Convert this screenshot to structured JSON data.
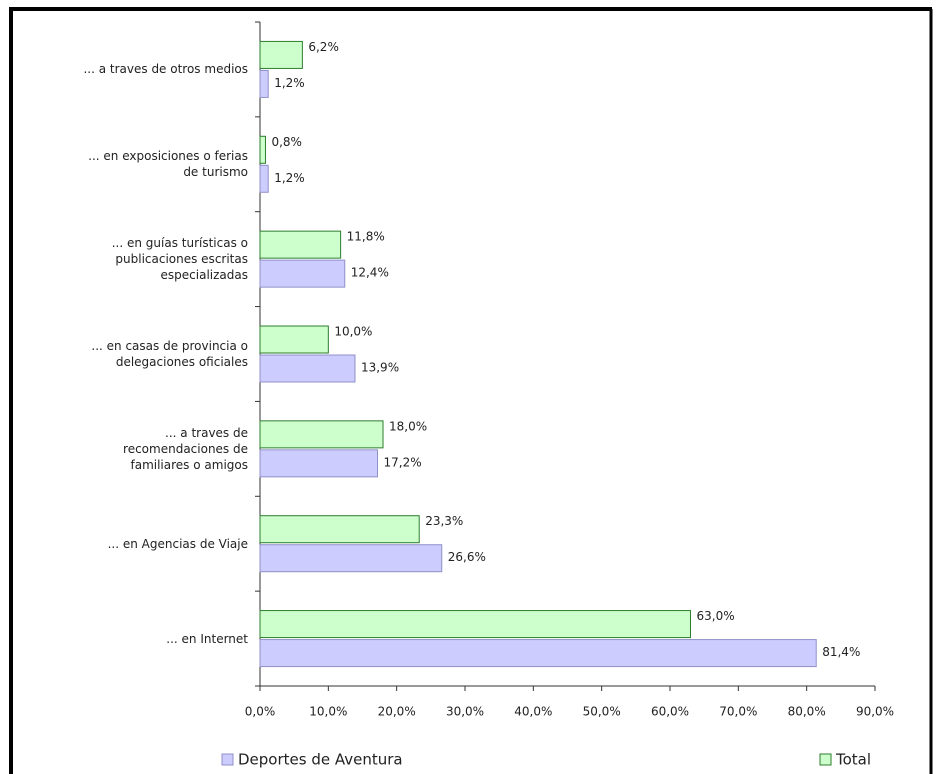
{
  "chart_data": {
    "type": "bar",
    "orientation": "horizontal",
    "categories": [
      "... a traves de otros medios",
      "... en exposiciones o ferias\nde turismo",
      "... en guías turísticas o\npublicaciones escritas\nespecializadas",
      "... en casas de provincia o\ndelegaciones oficiales",
      "... a traves de\nrecomendaciones de\nfamiliares o amigos",
      "... en Agencias de Viaje",
      "... en Internet"
    ],
    "series": [
      {
        "name": "Deportes de Aventura",
        "color": "#ccccff",
        "edge": "#9090c8",
        "values": [
          1.2,
          1.2,
          12.4,
          13.9,
          17.2,
          26.6,
          81.4
        ],
        "value_labels": [
          "1,2%",
          "1,2%",
          "12,4%",
          "13,9%",
          "17,2%",
          "26,6%",
          "81,4%"
        ]
      },
      {
        "name": "Total",
        "color": "#ccffcc",
        "edge": "#2e7d2e",
        "values": [
          6.2,
          0.8,
          11.8,
          10.0,
          18.0,
          23.3,
          63.0
        ],
        "value_labels": [
          "6,2%",
          "0,8%",
          "11,8%",
          "10,0%",
          "18,0%",
          "23,3%",
          "63,0%"
        ]
      }
    ],
    "xlim": [
      0,
      90
    ],
    "xticks": [
      {
        "value": 0,
        "label": "0,0%"
      },
      {
        "value": 10,
        "label": "10,0%"
      },
      {
        "value": 20,
        "label": "20,0%"
      },
      {
        "value": 30,
        "label": "30,0%"
      },
      {
        "value": 40,
        "label": "40,0%"
      },
      {
        "value": 50,
        "label": "50,0%"
      },
      {
        "value": 60,
        "label": "60,0%"
      },
      {
        "value": 70,
        "label": "70,0%"
      },
      {
        "value": 80,
        "label": "80,0%"
      },
      {
        "value": 90,
        "label": "90,0%"
      }
    ]
  }
}
